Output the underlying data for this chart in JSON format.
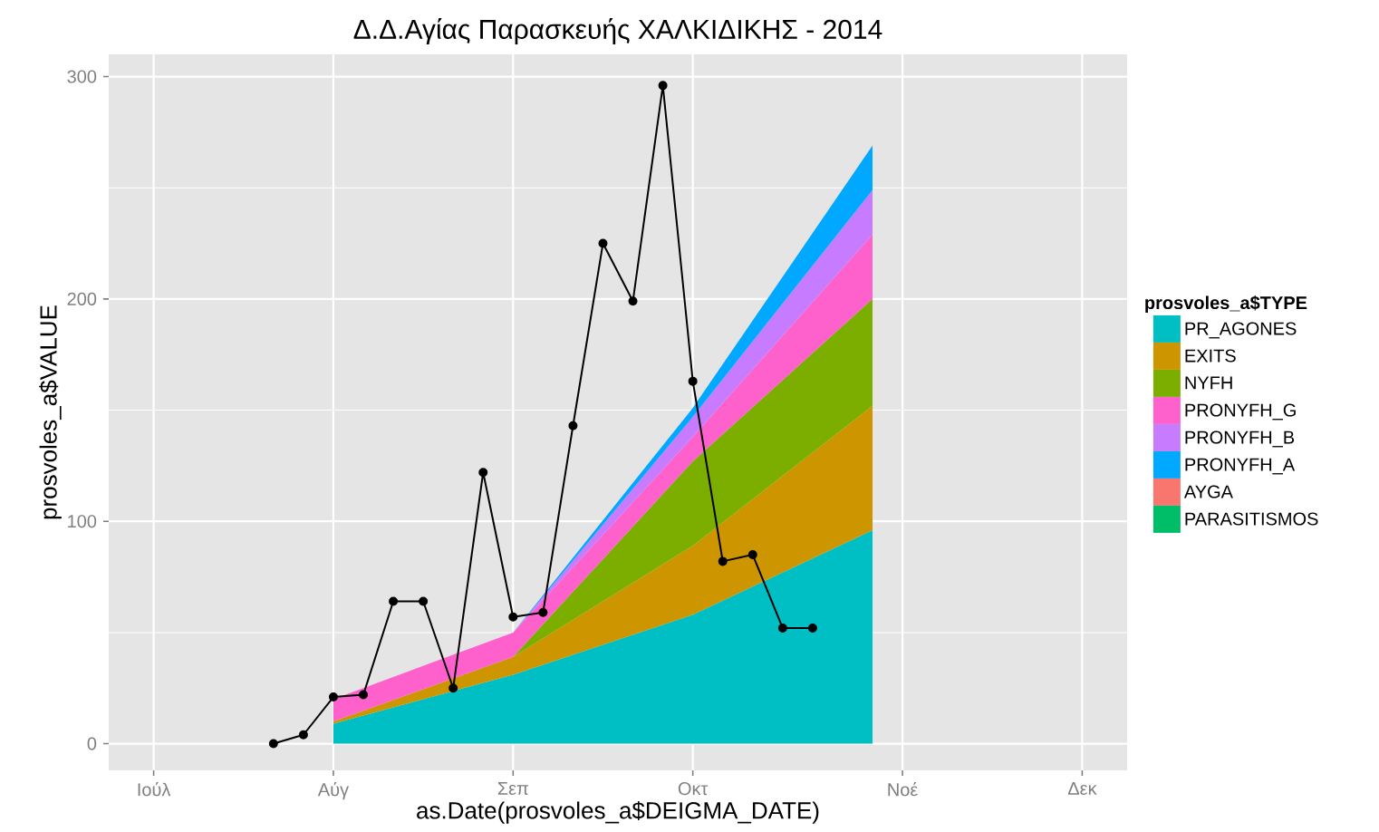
{
  "chart_data": {
    "type": "area",
    "title": "Δ.Δ.Αγίας Παρασκευής   ΧΑΛΚΙΔΙΚΗΣ - 2014",
    "xlabel": "as.Date(prosvoles_a$DEIGMA_DATE)",
    "ylabel": "prosvoles_a$VALUE",
    "legend_title": "prosvoles_a$TYPE",
    "stacked": true,
    "grid": true,
    "legend": "right",
    "categories": [
      null,
      "Ιούλ",
      null,
      null,
      null,
      null,
      null,
      "Αύγ",
      null,
      null,
      null,
      null,
      null,
      "Σεπ",
      null,
      null,
      null,
      null,
      null,
      "Οκτ",
      null,
      null,
      null,
      null,
      null,
      null,
      "Νοέ",
      null,
      null,
      null,
      null,
      null,
      "Δεκ",
      null
    ],
    "ylim": [
      -12,
      310
    ],
    "yticks": [
      0,
      100,
      200,
      300
    ],
    "series": [
      {
        "name": "PR_AGONES",
        "color": "#00BFC4",
        "values": [
          null,
          null,
          null,
          null,
          null,
          null,
          null,
          9,
          null,
          null,
          null,
          null,
          null,
          31,
          null,
          null,
          null,
          null,
          null,
          58,
          null,
          null,
          null,
          null,
          null,
          96,
          null,
          null,
          null,
          null,
          null,
          null,
          null,
          null
        ]
      },
      {
        "name": "EXITS",
        "color": "#CD9600",
        "values": [
          null,
          null,
          null,
          null,
          null,
          null,
          null,
          1,
          null,
          null,
          null,
          null,
          null,
          8,
          null,
          null,
          null,
          null,
          null,
          31,
          null,
          null,
          null,
          null,
          null,
          56,
          null,
          null,
          null,
          null,
          null,
          null,
          null,
          null
        ]
      },
      {
        "name": "NYFH",
        "color": "#7CAE00",
        "values": [
          null,
          null,
          null,
          null,
          null,
          null,
          null,
          0,
          null,
          null,
          null,
          null,
          null,
          0,
          null,
          null,
          null,
          null,
          null,
          38,
          null,
          null,
          null,
          null,
          null,
          48,
          null,
          null,
          null,
          null,
          null,
          null,
          null,
          null
        ]
      },
      {
        "name": "PRONYFH_G",
        "color": "#FF61CC",
        "values": [
          null,
          null,
          null,
          null,
          null,
          null,
          null,
          10,
          null,
          null,
          null,
          null,
          null,
          11,
          null,
          null,
          null,
          null,
          null,
          11,
          null,
          null,
          null,
          null,
          null,
          29,
          null,
          null,
          null,
          null,
          null,
          null,
          null,
          null
        ]
      },
      {
        "name": "PRONYFH_B",
        "color": "#C77CFF",
        "values": [
          null,
          null,
          null,
          null,
          null,
          null,
          null,
          0,
          null,
          null,
          null,
          null,
          null,
          0,
          null,
          null,
          null,
          null,
          null,
          9,
          null,
          null,
          null,
          null,
          null,
          20,
          null,
          null,
          null,
          null,
          null,
          null,
          null,
          null
        ]
      },
      {
        "name": "PRONYFH_A",
        "color": "#00A9FF",
        "values": [
          null,
          null,
          null,
          null,
          null,
          null,
          null,
          0,
          null,
          null,
          null,
          null,
          null,
          0,
          null,
          null,
          null,
          null,
          null,
          4,
          null,
          null,
          null,
          null,
          null,
          20,
          null,
          null,
          null,
          null,
          null,
          null,
          null,
          null
        ]
      },
      {
        "name": "AYGA",
        "color": "#F8766D",
        "values": [
          null,
          null,
          null,
          null,
          null,
          null,
          null,
          null,
          null,
          null,
          null,
          null,
          null,
          null,
          null,
          null,
          null,
          null,
          null,
          null,
          null,
          null,
          null,
          null,
          null,
          null,
          null,
          null,
          null,
          null,
          null,
          null,
          null,
          null
        ]
      },
      {
        "name": "PARASITISMOS",
        "color": "#00BE67",
        "values": [
          null,
          null,
          null,
          null,
          null,
          null,
          null,
          null,
          null,
          null,
          null,
          null,
          null,
          null,
          null,
          null,
          null,
          null,
          null,
          null,
          null,
          null,
          null,
          null,
          null,
          null,
          null,
          null,
          null,
          null,
          null,
          null,
          null,
          null
        ]
      },
      {
        "type": "line",
        "color": "#000000",
        "marker": "circle",
        "values": [
          null,
          null,
          null,
          null,
          null,
          0,
          4,
          21,
          22,
          64,
          64,
          25,
          122,
          57,
          59,
          143,
          225,
          199,
          296,
          163,
          82,
          85,
          52,
          52,
          null,
          null,
          null,
          null,
          null,
          null,
          null,
          null,
          null,
          null
        ]
      }
    ]
  }
}
